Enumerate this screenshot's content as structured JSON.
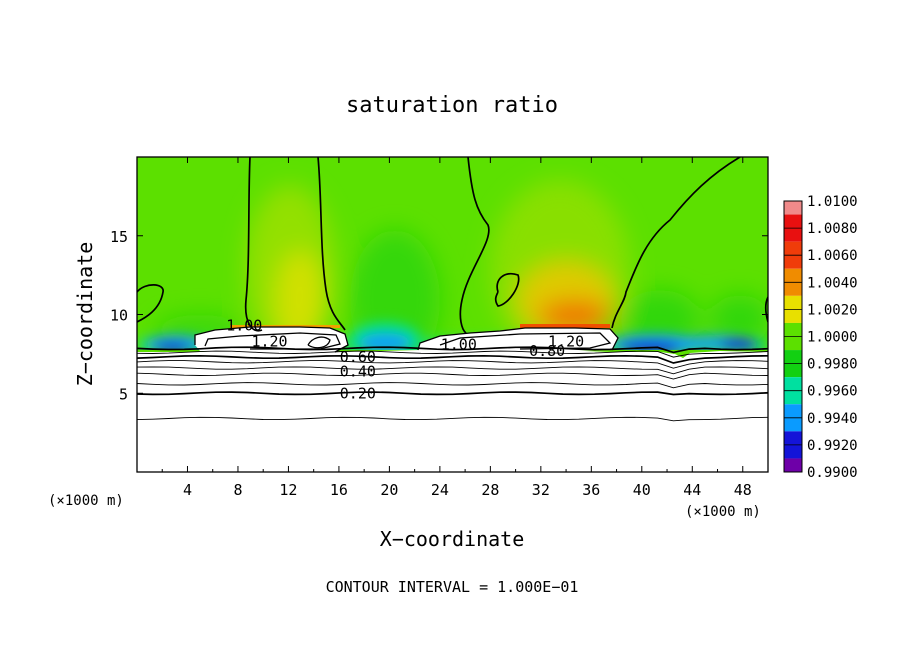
{
  "chart_data": {
    "type": "heatmap",
    "title": "saturation ratio",
    "xlabel": "X−coordinate",
    "ylabel": "Z−coordinate",
    "x_unit_left": "(×1000 m)",
    "x_unit_right": "(×1000 m)",
    "footer": "CONTOUR INTERVAL = 1.000E−01",
    "xlim": [
      0,
      50
    ],
    "ylim": [
      0,
      20
    ],
    "x_ticks": [
      4,
      8,
      12,
      16,
      20,
      24,
      28,
      32,
      36,
      40,
      44,
      48
    ],
    "y_ticks": [
      5,
      10,
      15
    ],
    "colorbar": {
      "range": [
        0.99,
        1.01
      ],
      "labels": [
        "1.0100",
        "1.0080",
        "1.0060",
        "1.0040",
        "1.0020",
        "1.0000",
        "0.9980",
        "0.9960",
        "0.9940",
        "0.9920",
        "0.9900"
      ],
      "colors": [
        "#f08a8a",
        "#e81010",
        "#f03c0a",
        "#f08c00",
        "#e8e000",
        "#5ce000",
        "#12d012",
        "#00e0a0",
        "#0a9bff",
        "#1414d8",
        "#6e00a8"
      ]
    },
    "contour_labels": [
      {
        "text": "1.00",
        "x": 8.5,
        "y": 9.1
      },
      {
        "text": "1.20",
        "x": 10.5,
        "y": 8.1
      },
      {
        "text": "1.00",
        "x": 25.5,
        "y": 7.9
      },
      {
        "text": "1.20",
        "x": 34.0,
        "y": 8.1
      },
      {
        "text": "0.80",
        "x": 32.5,
        "y": 7.5
      },
      {
        "text": "0.60",
        "x": 17.5,
        "y": 7.1
      },
      {
        "text": "0.40",
        "x": 17.5,
        "y": 6.2
      },
      {
        "text": "0.20",
        "x": 17.5,
        "y": 4.8
      }
    ],
    "lower_contour_levels_z": [
      7.85,
      7.6,
      7.3,
      7.0,
      6.6,
      6.2,
      5.6,
      5.0,
      3.4
    ]
  }
}
